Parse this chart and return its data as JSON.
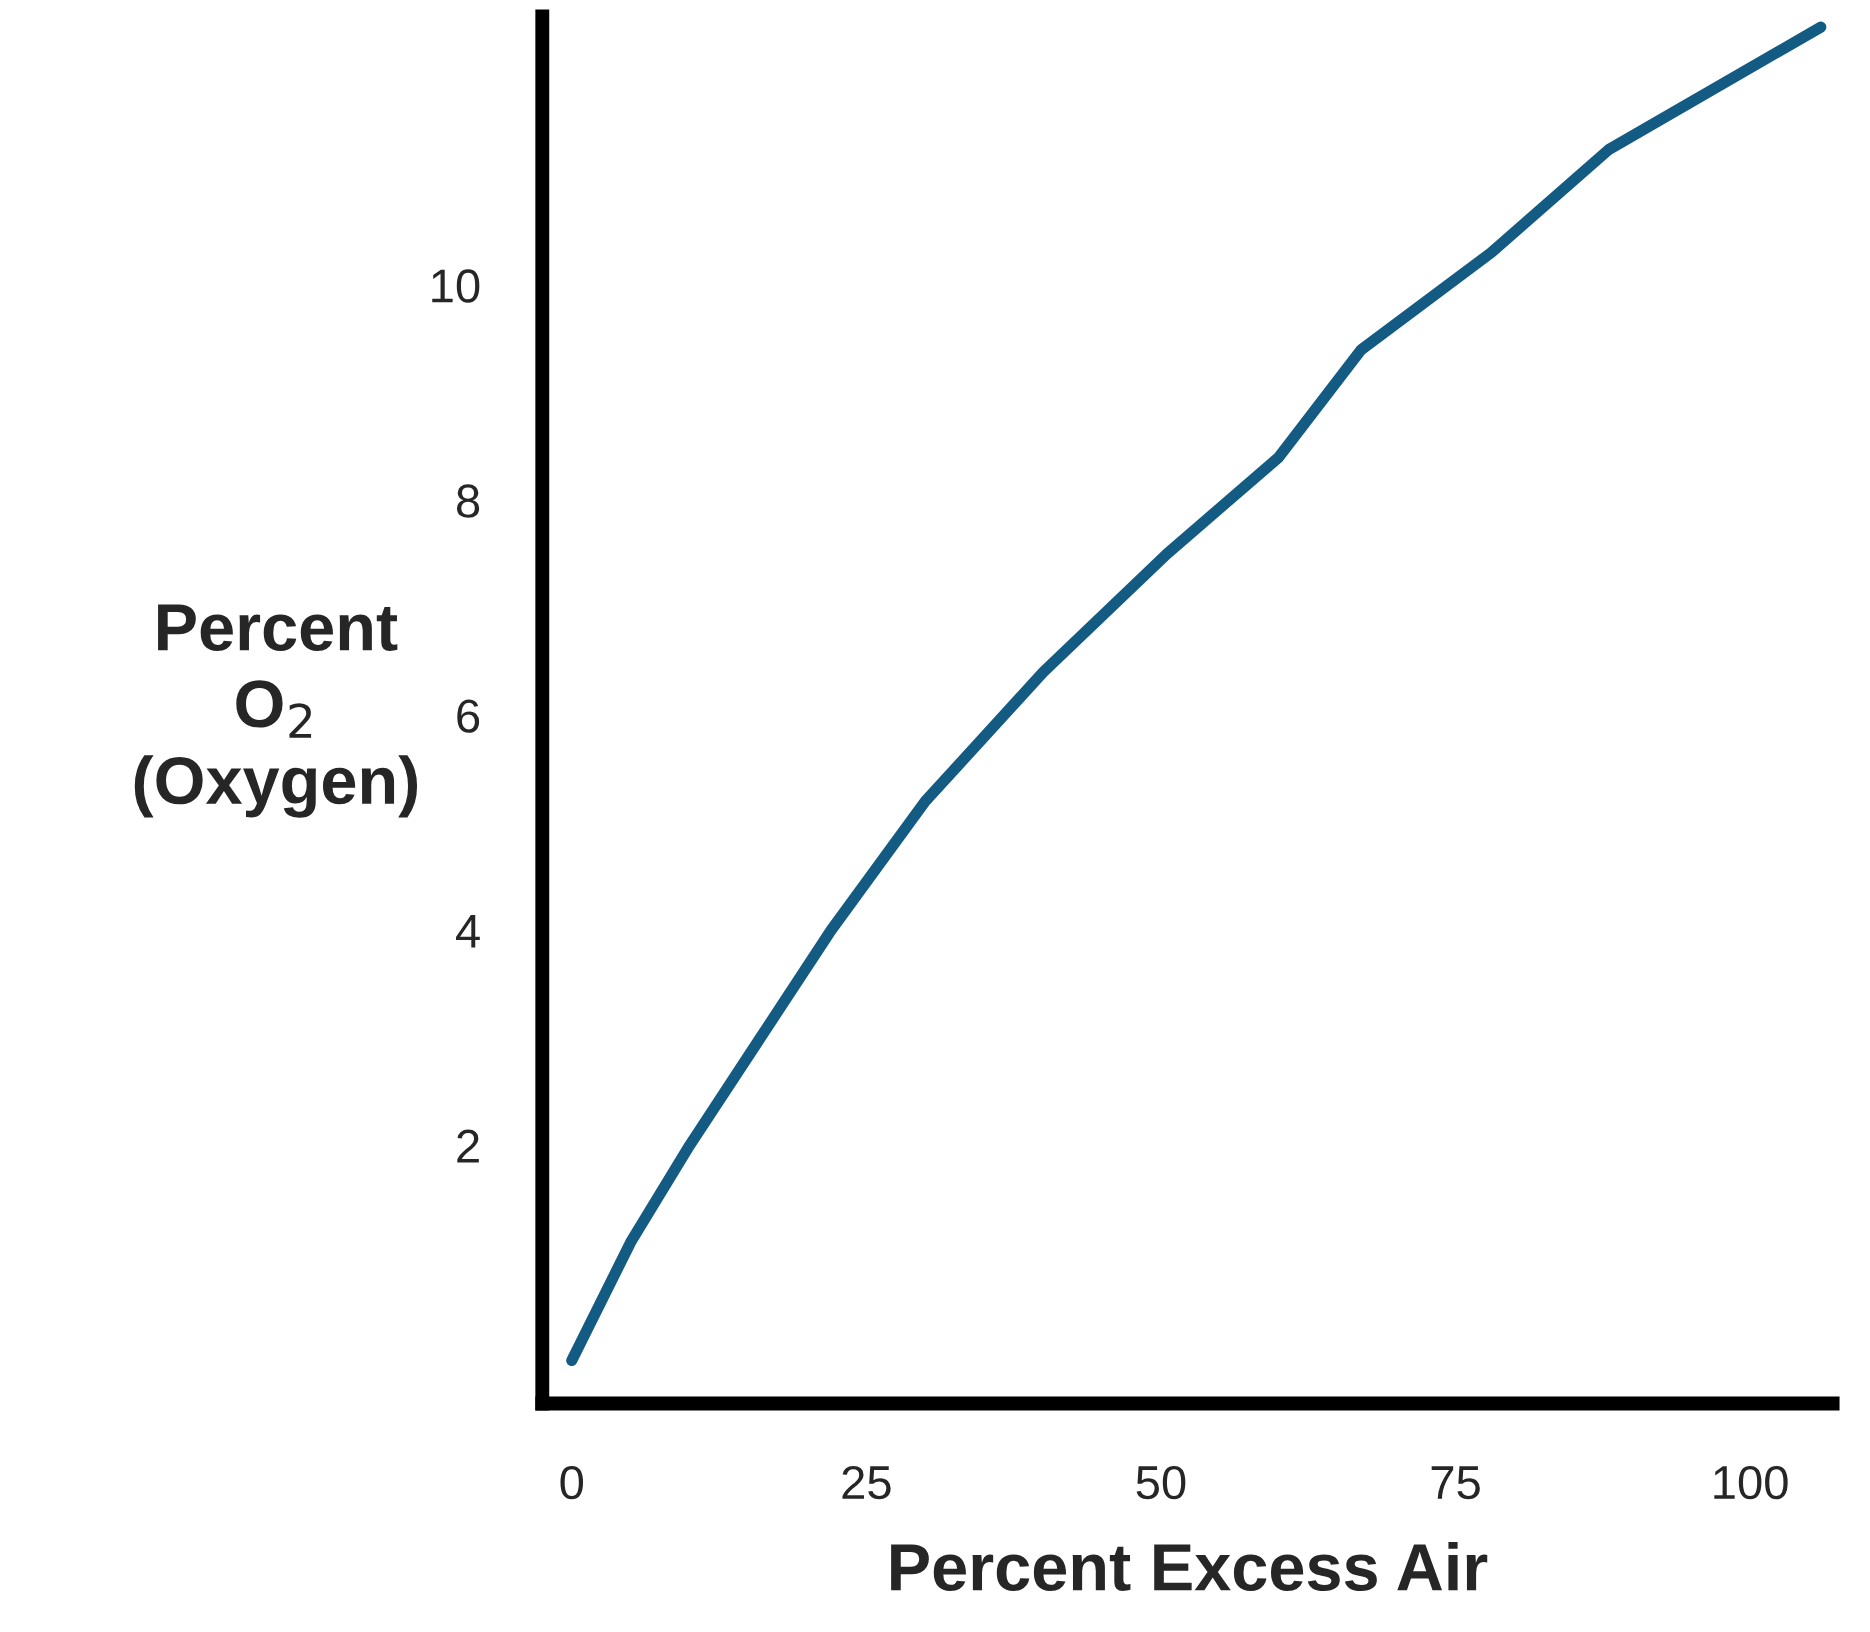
{
  "chart_data": {
    "type": "line",
    "xlabel": "Percent Excess Air",
    "ylabel": "Percent\nO$_{2}$\n(Oxygen)",
    "x": [
      0,
      5,
      10,
      16,
      22,
      30,
      40,
      50.5,
      60,
      67,
      78,
      88,
      106
    ],
    "series": [
      {
        "color": "#135b82",
        "values": [
          0,
          1.1,
          2,
          3,
          4,
          5.2,
          6.4,
          7.5,
          8.4,
          9.4,
          10.3,
          11.26,
          12.4
        ]
      }
    ],
    "xlim": [
      -2.5,
      107
    ],
    "ylim": [
      -0.4,
      12.5
    ],
    "xticks": [
      0,
      25,
      50,
      75,
      100
    ],
    "yticks": [
      2,
      4,
      6,
      8,
      10
    ],
    "grid": false,
    "legend": false,
    "marker": "none",
    "line_style": "solid"
  }
}
